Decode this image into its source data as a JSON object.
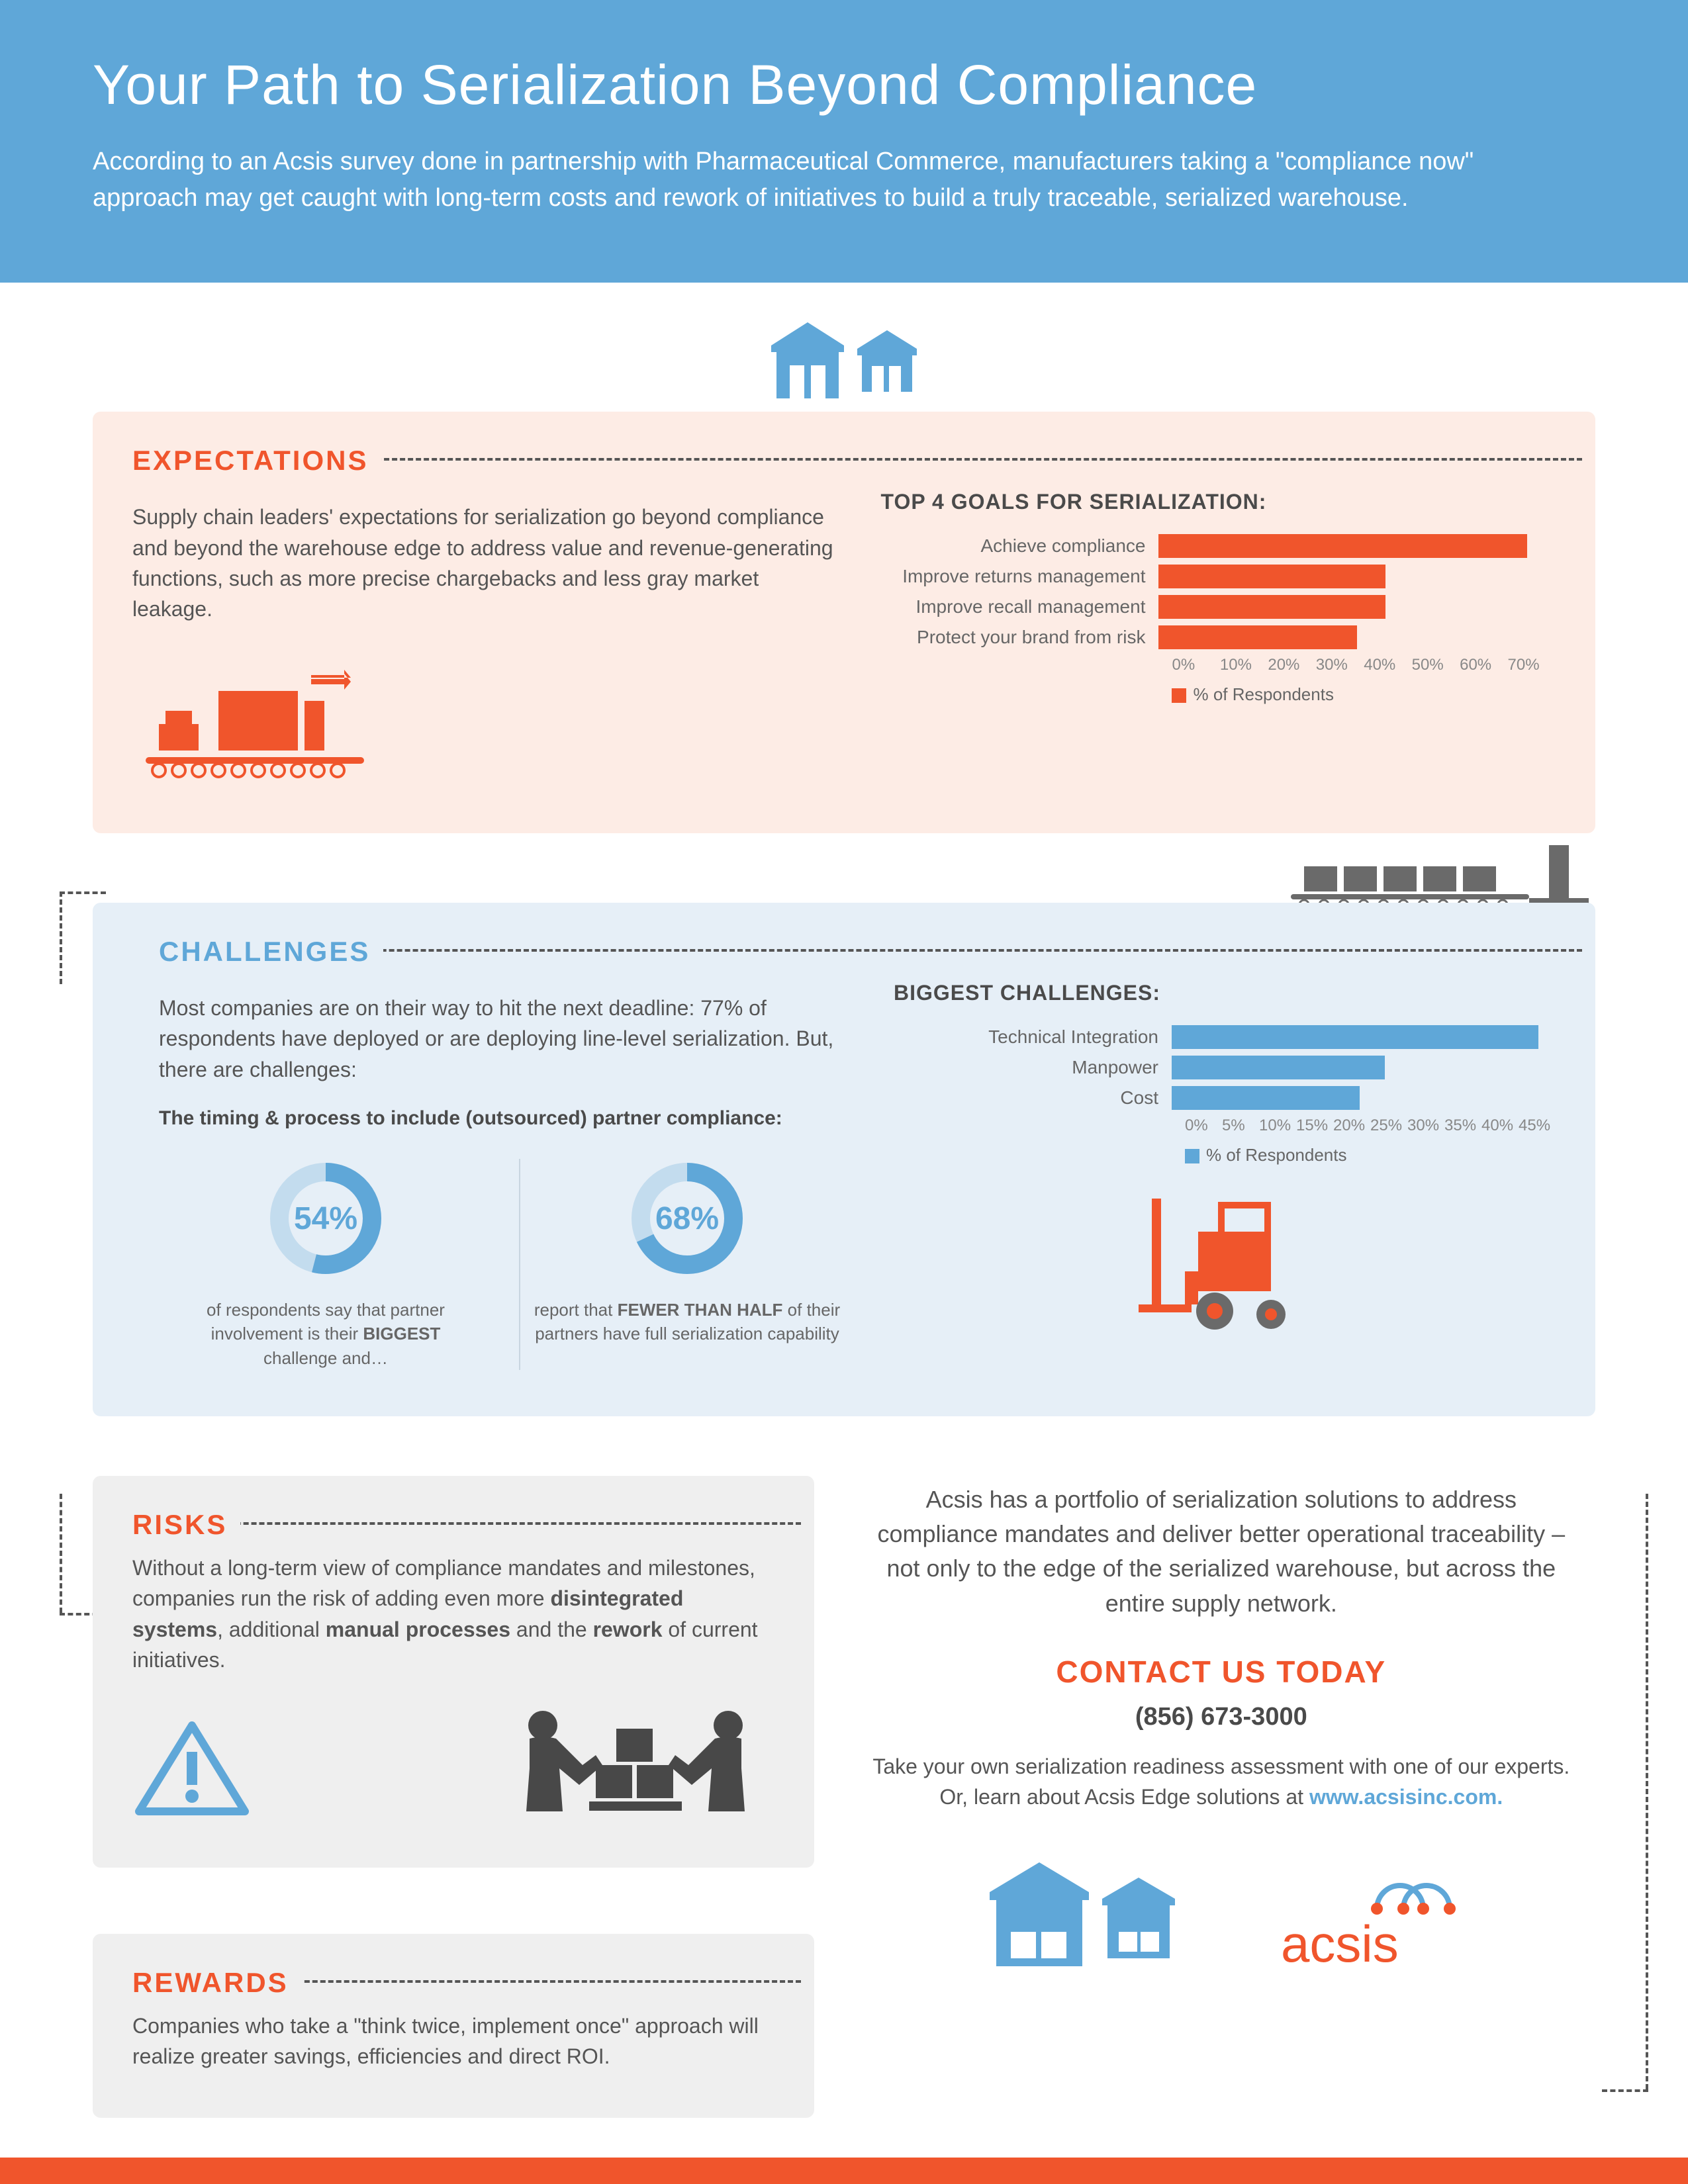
{
  "header": {
    "title": "Your Path to Serialization Beyond Compliance",
    "subtitle": "According to an Acsis survey done in partnership with Pharmaceutical Commerce, manufacturers taking a \"compliance now\" approach may get caught with long-term costs and rework of initiatives to build a truly traceable, serialized warehouse."
  },
  "colors": {
    "blue": "#5fa7d8",
    "blue_light": "#a9cde8",
    "blue_pale": "#e6eff7",
    "orange": "#f0552c",
    "orange_pale": "#fdece5",
    "gray": "#6a6a6a",
    "gray_light": "#efefef",
    "text": "#555555",
    "heading_text": "#4a4a4a"
  },
  "expectations": {
    "title": "EXPECTATIONS",
    "body": "Supply chain leaders' expectations for serialization go beyond compliance and beyond the warehouse edge to address value and revenue-generating functions, such as more precise chargebacks and less gray market leakage.",
    "chart": {
      "title": "TOP 4 GOALS FOR SERIALIZATION:",
      "type": "bar",
      "orientation": "horizontal",
      "bar_color": "#f0552c",
      "x_max": 70,
      "x_ticks": [
        0,
        10,
        20,
        30,
        40,
        50,
        60,
        70
      ],
      "x_tick_labels": [
        "0%",
        "10%",
        "20%",
        "30%",
        "40%",
        "50%",
        "60%",
        "70%"
      ],
      "legend": "% of Respondents",
      "categories": [
        "Achieve compliance",
        "Improve returns management",
        "Improve recall management",
        "Protect your brand from risk"
      ],
      "values": [
        65,
        40,
        40,
        35
      ]
    }
  },
  "challenges": {
    "title": "CHALLENGES",
    "body": "Most companies are on their way to hit the next deadline: 77% of respondents have deployed or are deploying line-level serialization. But, there are challenges:",
    "sub_bold": "The timing & process to include (outsourced) partner compliance:",
    "donuts": [
      {
        "value": 54,
        "label": "54%",
        "caption_pre": "of respondents say that partner involvement is their ",
        "caption_bold": "BIGGEST",
        "caption_post": " challenge and…",
        "fg": "#5fa7d8",
        "bg": "#c3dcee"
      },
      {
        "value": 68,
        "label": "68%",
        "caption_pre": "report that ",
        "caption_bold": "FEWER THAN HALF",
        "caption_post": " of their partners have full serialization capability",
        "fg": "#5fa7d8",
        "bg": "#c3dcee"
      }
    ],
    "chart": {
      "title": "BIGGEST CHALLENGES:",
      "type": "bar",
      "orientation": "horizontal",
      "bar_color": "#5fa7d8",
      "x_max": 45,
      "x_ticks": [
        0,
        5,
        10,
        15,
        20,
        25,
        30,
        35,
        40,
        45
      ],
      "x_tick_labels": [
        "0%",
        "5%",
        "10%",
        "15%",
        "20%",
        "25%",
        "30%",
        "35%",
        "40%",
        "45%"
      ],
      "legend": "% of Respondents",
      "categories": [
        "Technical Integration",
        "Manpower",
        "Cost"
      ],
      "values": [
        43,
        25,
        22
      ]
    }
  },
  "risks": {
    "title": "RISKS",
    "body_html": "Without a long-term view of compliance mandates and milestones, companies run the risk of adding even more <b>disintegrated systems</b>, additional <b>manual processes</b> and the <b>rework</b> of current initiatives."
  },
  "rewards": {
    "title": "REWARDS",
    "body": "Companies who take a \"think twice, implement once\" approach will realize greater savings, efficiencies and direct ROI."
  },
  "cta": {
    "body": "Acsis has a portfolio of serialization solutions to address compliance mandates and deliver better operational traceability – not only to the edge of the serialized warehouse, but across the entire supply network.",
    "heading": "CONTACT US TODAY",
    "phone": "(856) 673-3000",
    "sub": "Take your own serialization readiness assessment with one of our experts. Or, learn about Acsis Edge solutions at ",
    "link": "www.acsisinc.com."
  },
  "logo": {
    "text": "acsis"
  }
}
